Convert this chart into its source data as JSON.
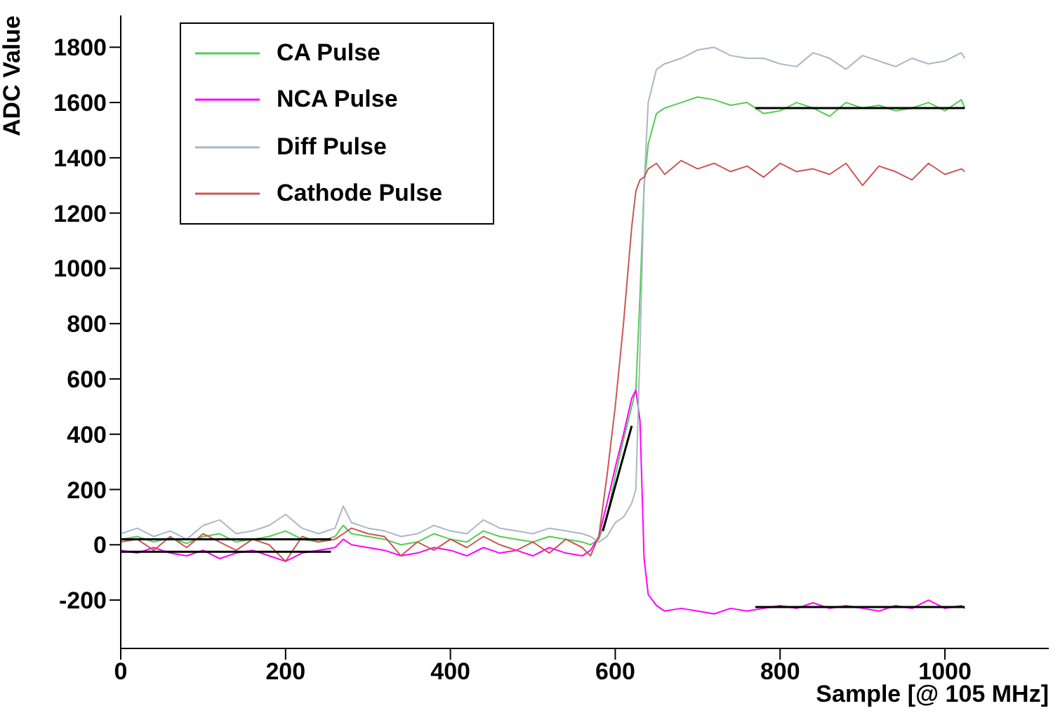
{
  "chart_data": {
    "type": "line",
    "xlabel": "Sample [@ 105 MHz]",
    "ylabel": "ADC Value",
    "xlim": [
      0,
      1126
    ],
    "ylim": [
      -375,
      1915
    ],
    "xticks": [
      0,
      200,
      400,
      600,
      800,
      1000
    ],
    "yticks": [
      -200,
      0,
      200,
      400,
      600,
      800,
      1000,
      1200,
      1400,
      1600,
      1800
    ],
    "legend": "top left",
    "marker": "none",
    "line_style": "solid",
    "x": [
      0,
      20,
      40,
      60,
      80,
      100,
      120,
      140,
      160,
      180,
      200,
      220,
      240,
      260,
      270,
      280,
      300,
      320,
      340,
      360,
      380,
      400,
      420,
      440,
      460,
      480,
      500,
      520,
      540,
      560,
      570,
      580,
      590,
      600,
      610,
      620,
      625,
      630,
      635,
      640,
      650,
      660,
      680,
      700,
      720,
      740,
      760,
      780,
      800,
      820,
      840,
      860,
      880,
      900,
      920,
      940,
      960,
      980,
      1000,
      1020,
      1024
    ],
    "series": [
      {
        "name": "CA Pulse",
        "color": "#55cc55",
        "values": [
          20,
          30,
          10,
          25,
          5,
          30,
          40,
          10,
          20,
          30,
          50,
          20,
          10,
          30,
          70,
          40,
          30,
          20,
          0,
          10,
          40,
          20,
          10,
          50,
          30,
          20,
          10,
          30,
          20,
          10,
          0,
          20,
          100,
          250,
          380,
          500,
          560,
          900,
          1300,
          1450,
          1560,
          1580,
          1600,
          1620,
          1610,
          1590,
          1600,
          1560,
          1570,
          1600,
          1580,
          1550,
          1600,
          1580,
          1590,
          1570,
          1580,
          1600,
          1570,
          1610,
          1580
        ]
      },
      {
        "name": "NCA Pulse",
        "color": "#ff00ff",
        "values": [
          -20,
          -30,
          -10,
          -30,
          -40,
          -20,
          -50,
          -30,
          -20,
          -40,
          -60,
          -30,
          -20,
          -10,
          20,
          0,
          -10,
          -20,
          -40,
          -30,
          -10,
          -20,
          -40,
          -10,
          -30,
          -20,
          -40,
          -10,
          -30,
          -40,
          -20,
          30,
          150,
          280,
          400,
          530,
          560,
          450,
          -50,
          -180,
          -220,
          -240,
          -230,
          -240,
          -250,
          -230,
          -240,
          -230,
          -220,
          -230,
          -210,
          -230,
          -220,
          -230,
          -240,
          -220,
          -230,
          -200,
          -230,
          -220,
          -230
        ]
      },
      {
        "name": "Diff Pulse",
        "color": "#a8b8c6",
        "values": [
          40,
          60,
          30,
          50,
          20,
          70,
          90,
          40,
          50,
          70,
          110,
          60,
          40,
          60,
          140,
          80,
          60,
          50,
          30,
          40,
          70,
          50,
          40,
          90,
          60,
          50,
          40,
          60,
          50,
          40,
          30,
          10,
          30,
          80,
          100,
          150,
          200,
          700,
          1300,
          1600,
          1720,
          1740,
          1760,
          1790,
          1800,
          1770,
          1760,
          1760,
          1740,
          1730,
          1780,
          1760,
          1720,
          1770,
          1750,
          1730,
          1760,
          1740,
          1750,
          1780,
          1760
        ]
      },
      {
        "name": "Cathode Pulse",
        "color": "#cc5555",
        "values": [
          10,
          20,
          -20,
          30,
          -10,
          40,
          10,
          -20,
          20,
          0,
          -60,
          30,
          10,
          20,
          40,
          60,
          40,
          30,
          -40,
          10,
          -20,
          20,
          -10,
          30,
          0,
          -20,
          10,
          -30,
          20,
          -10,
          -40,
          30,
          250,
          500,
          800,
          1150,
          1280,
          1320,
          1330,
          1360,
          1380,
          1340,
          1390,
          1360,
          1380,
          1350,
          1370,
          1330,
          1380,
          1350,
          1360,
          1340,
          1380,
          1300,
          1370,
          1350,
          1320,
          1380,
          1340,
          1360,
          1350
        ]
      },
      {
        "color": "#000000",
        "x": [
          0,
          255
        ],
        "values": [
          20,
          20
        ]
      },
      {
        "color": "#000000",
        "x": [
          0,
          255
        ],
        "values": [
          -25,
          -25
        ]
      },
      {
        "color": "#000000",
        "x": [
          585,
          620
        ],
        "values": [
          50,
          430
        ]
      },
      {
        "color": "#000000",
        "x": [
          770,
          1024
        ],
        "values": [
          1580,
          1580
        ]
      },
      {
        "color": "#000000",
        "x": [
          770,
          1024
        ],
        "values": [
          -225,
          -225
        ]
      }
    ]
  }
}
